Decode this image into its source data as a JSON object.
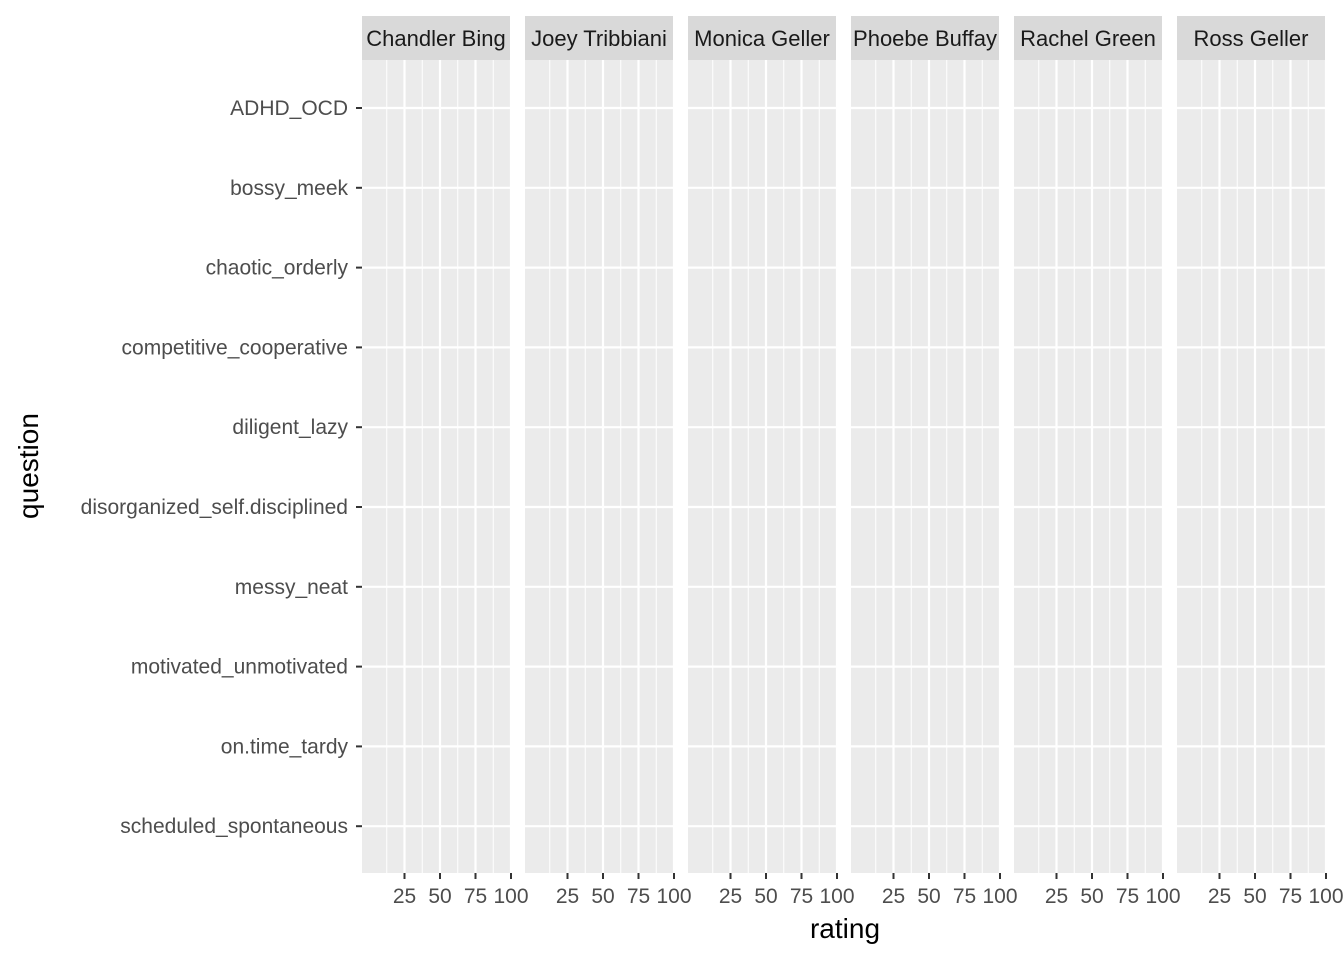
{
  "chart_data": {
    "type": "facet-grid",
    "xlabel": "rating",
    "ylabel": "question",
    "xlim": [
      0,
      100
    ],
    "x_ticks": [
      25,
      50,
      75,
      100
    ],
    "x_tick_labels": [
      "25",
      "50",
      "75",
      "100"
    ],
    "facets": [
      "Chandler Bing",
      "Joey Tribbiani",
      "Monica Geller",
      "Phoebe Buffay",
      "Rachel Green",
      "Ross Geller"
    ],
    "categories": [
      "scheduled_spontaneous",
      "on.time_tardy",
      "motivated_unmotivated",
      "messy_neat",
      "disorganized_self.disciplined",
      "diligent_lazy",
      "competitive_cooperative",
      "chaotic_orderly",
      "bossy_meek",
      "ADHD_OCD"
    ],
    "series": [],
    "grid": true,
    "background": "#ebebeb",
    "strip_background": "#d9d9d9",
    "grid_color": "#ffffff"
  }
}
